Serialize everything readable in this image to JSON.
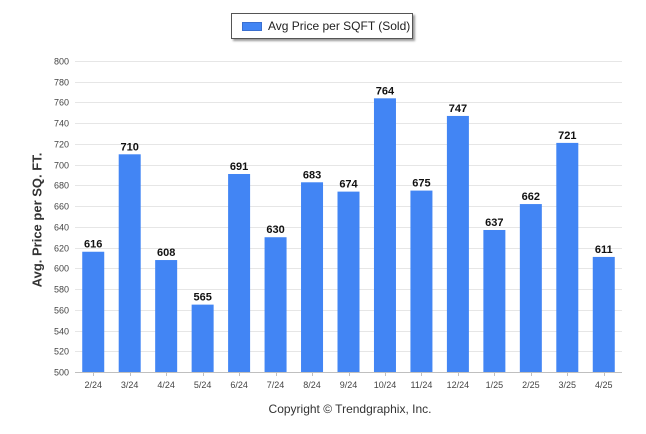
{
  "legend": {
    "label": "Avg Price per SQFT (Sold)",
    "color": "#4285f4"
  },
  "footer": "Copyright © Trendgraphix, Inc.",
  "chart_data": {
    "type": "bar",
    "title": "",
    "xlabel": "",
    "ylabel": "Avg. Price per SQ. FT.",
    "ylim": [
      500,
      800
    ],
    "yticks": [
      500,
      520,
      540,
      560,
      580,
      600,
      620,
      640,
      660,
      680,
      700,
      720,
      740,
      760,
      780,
      800
    ],
    "grid": true,
    "legend_position": "top-center",
    "categories": [
      "2/24",
      "3/24",
      "4/24",
      "5/24",
      "6/24",
      "7/24",
      "8/24",
      "9/24",
      "10/24",
      "11/24",
      "12/24",
      "1/25",
      "2/25",
      "3/25",
      "4/25"
    ],
    "series": [
      {
        "name": "Avg Price per SQFT (Sold)",
        "color": "#4285f4",
        "values": [
          616,
          710,
          608,
          565,
          691,
          630,
          683,
          674,
          764,
          675,
          747,
          637,
          662,
          721,
          611
        ]
      }
    ]
  }
}
